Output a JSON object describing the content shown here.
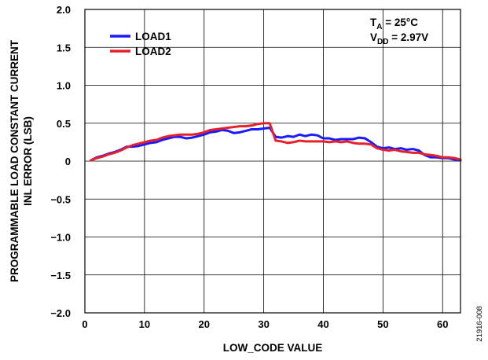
{
  "chart_data": {
    "type": "line",
    "xlabel": "LOW_CODE VALUE",
    "ylabel_lines": [
      "PROGRAMMABLE LOAD CONSTANT CURRENT",
      "INL ERROR (LSB)"
    ],
    "xlim": [
      0,
      63
    ],
    "ylim": [
      -2.0,
      2.0
    ],
    "x_ticks": [
      0,
      10,
      20,
      30,
      40,
      50,
      60
    ],
    "x_tick_labels": [
      "0",
      "10",
      "20",
      "30",
      "40",
      "50",
      "60"
    ],
    "y_ticks": [
      -2.0,
      -1.5,
      -1.0,
      -0.5,
      0,
      0.5,
      1.0,
      1.5,
      2.0
    ],
    "y_tick_labels": [
      "−2.0",
      "−1.5",
      "−1.0",
      "−0.5",
      "0",
      "0.5",
      "1.0",
      "1.5",
      "2.0"
    ],
    "grid": true,
    "legend_position": "top-left",
    "conditions": {
      "ta_main": "T",
      "ta_sub": "A",
      "ta_rest": " = 25°C",
      "vdd_main": "V",
      "vdd_sub": "DD",
      "vdd_rest": " = 2.97V"
    },
    "figure_id": "21916-008",
    "x": [
      1,
      2,
      3,
      4,
      5,
      6,
      7,
      8,
      9,
      10,
      11,
      12,
      13,
      14,
      15,
      16,
      17,
      18,
      19,
      20,
      21,
      22,
      23,
      24,
      25,
      26,
      27,
      28,
      29,
      30,
      31,
      32,
      33,
      34,
      35,
      36,
      37,
      38,
      39,
      40,
      41,
      42,
      43,
      44,
      45,
      46,
      47,
      48,
      49,
      50,
      51,
      52,
      53,
      54,
      55,
      56,
      57,
      58,
      59,
      60,
      61,
      62,
      63
    ],
    "series": [
      {
        "name": "LOAD1",
        "color": "#1a1aff",
        "values": [
          0.01,
          0.05,
          0.07,
          0.1,
          0.12,
          0.15,
          0.19,
          0.19,
          0.2,
          0.22,
          0.24,
          0.25,
          0.28,
          0.3,
          0.32,
          0.32,
          0.3,
          0.31,
          0.33,
          0.35,
          0.38,
          0.39,
          0.41,
          0.4,
          0.37,
          0.38,
          0.4,
          0.42,
          0.42,
          0.43,
          0.44,
          0.32,
          0.31,
          0.33,
          0.32,
          0.35,
          0.33,
          0.35,
          0.34,
          0.3,
          0.3,
          0.28,
          0.29,
          0.29,
          0.29,
          0.31,
          0.3,
          0.25,
          0.19,
          0.17,
          0.18,
          0.16,
          0.17,
          0.15,
          0.16,
          0.14,
          0.08,
          0.05,
          0.05,
          0.04,
          0.04,
          0.02,
          0.01
        ]
      },
      {
        "name": "LOAD2",
        "color": "#e8202a",
        "values": [
          0.01,
          0.04,
          0.06,
          0.09,
          0.11,
          0.14,
          0.18,
          0.21,
          0.23,
          0.25,
          0.27,
          0.28,
          0.31,
          0.33,
          0.34,
          0.35,
          0.35,
          0.35,
          0.36,
          0.38,
          0.41,
          0.42,
          0.43,
          0.44,
          0.45,
          0.46,
          0.46,
          0.47,
          0.49,
          0.5,
          0.5,
          0.27,
          0.26,
          0.24,
          0.25,
          0.27,
          0.26,
          0.26,
          0.26,
          0.26,
          0.25,
          0.26,
          0.25,
          0.26,
          0.24,
          0.23,
          0.23,
          0.22,
          0.17,
          0.15,
          0.14,
          0.15,
          0.13,
          0.12,
          0.11,
          0.11,
          0.09,
          0.08,
          0.07,
          0.05,
          0.05,
          0.04,
          0.02
        ]
      }
    ]
  }
}
